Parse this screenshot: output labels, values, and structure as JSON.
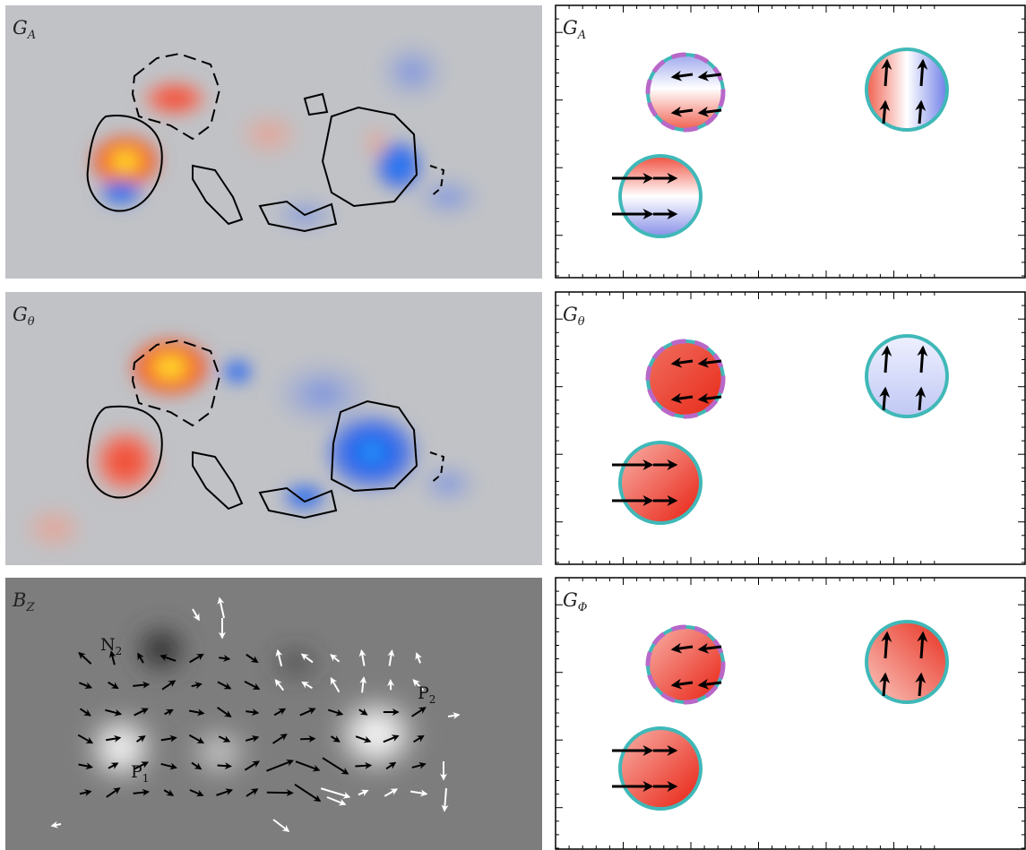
{
  "left_panels": [
    {
      "label": "G",
      "label_sub": "A"
    },
    {
      "label": "G",
      "label_sub": "θ"
    },
    {
      "label": "B",
      "label_sub": "Z",
      "annotations": [
        {
          "text": "N",
          "sub": "2"
        },
        {
          "text": "P",
          "sub": "1"
        },
        {
          "text": "P",
          "sub": "2"
        }
      ]
    }
  ],
  "right_panels": [
    {
      "label": "G",
      "label_sub": "A"
    },
    {
      "label": "G",
      "label_sub": "θ"
    },
    {
      "label": "G",
      "label_sub": "Φ"
    }
  ]
}
